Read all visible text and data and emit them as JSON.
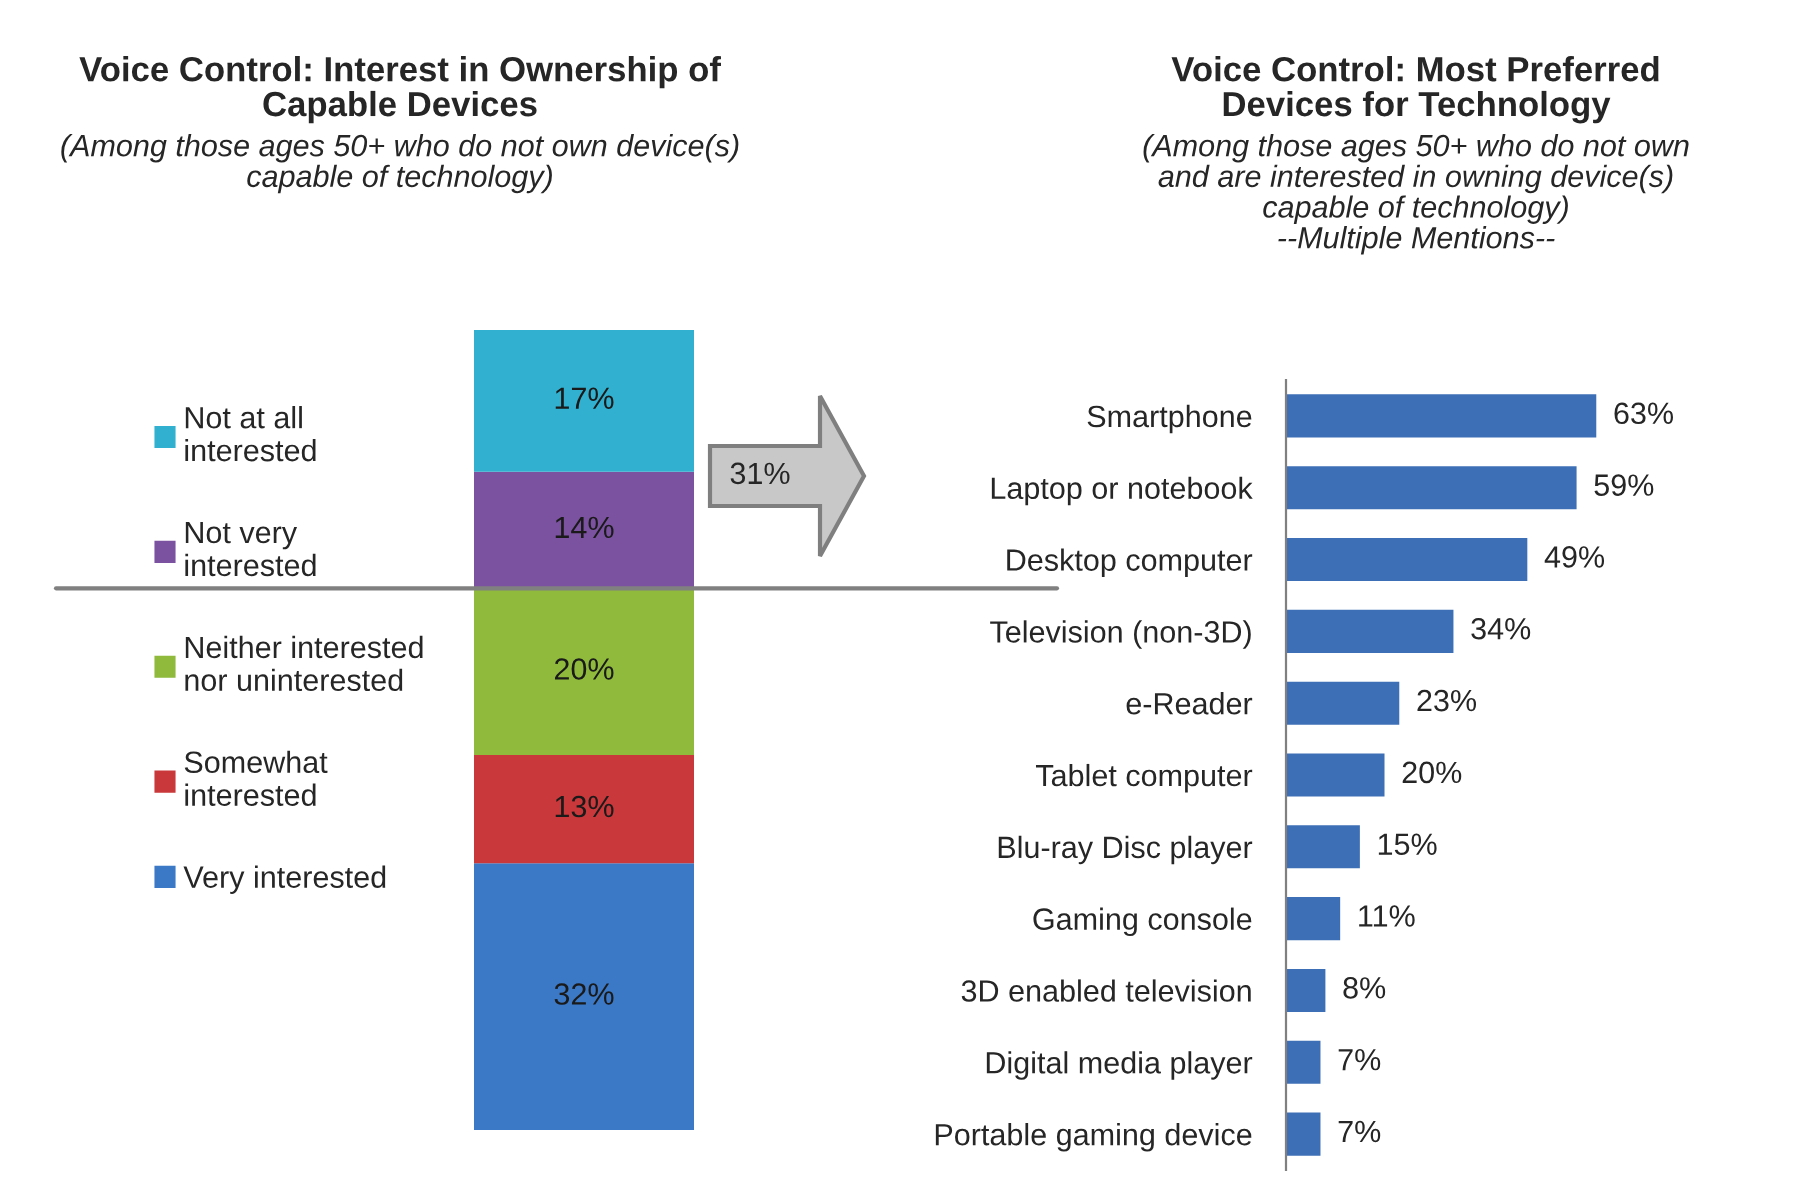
{
  "chart_data": [
    {
      "type": "bar",
      "title": "Voice Control: Interest in Ownership of\nCapable Devices",
      "subtitle": "(Among those ages 50+ who do not own device(s)\ncapable of technology)",
      "categories": [
        null
      ],
      "stacked": true,
      "legend": "left",
      "series": [
        {
          "name": "Very interested",
          "color": "#3b78c6",
          "values": [
            32
          ],
          "value_labels": [
            "32%"
          ]
        },
        {
          "name": "Somewhat\ninterested",
          "color": "#c9383a",
          "values": [
            13
          ],
          "value_labels": [
            "13%"
          ]
        },
        {
          "name": "Neither interested\nnor uninterested",
          "color": "#8fba3c",
          "values": [
            20
          ],
          "value_labels": [
            "20%"
          ]
        },
        {
          "name": "Not very\ninterested",
          "color": "#7b52a0",
          "values": [
            14
          ],
          "value_labels": [
            "14%"
          ]
        },
        {
          "name": "Not at all\ninterested",
          "color": "#31b0cf",
          "values": [
            17
          ],
          "value_labels": [
            "17%"
          ]
        }
      ],
      "ref_lines": [
        {
          "axis": "y",
          "value": 65,
          "color": "#808080"
        }
      ],
      "annotations": [
        "31%"
      ]
    },
    {
      "type": "bar",
      "orientation": "horizontal",
      "title": "Voice Control: Most Preferred\nDevices for Technology",
      "subtitle": "(Among those ages 50+ who do not own\nand are interested in owning device(s)\ncapable of technology)\n--Multiple Mentions--",
      "categories": [
        "Smartphone",
        "Laptop or notebook",
        "Desktop computer",
        "Television (non-3D)",
        "e-Reader",
        "Tablet computer",
        "Blu-ray Disc player",
        "Gaming console",
        "3D enabled television",
        "Digital media player",
        "Portable gaming device"
      ],
      "series": [
        {
          "color": "#3d6fb6",
          "values": [
            63,
            59,
            49,
            34,
            23,
            20,
            15,
            11,
            8,
            7,
            7
          ],
          "value_labels": [
            "63%",
            "59%",
            "49%",
            "34%",
            "23%",
            "20%",
            "15%",
            "11%",
            "8%",
            "7%",
            "7%"
          ]
        }
      ]
    }
  ]
}
